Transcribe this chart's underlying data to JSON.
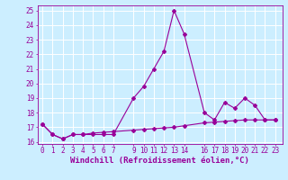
{
  "xlabel": "Windchill (Refroidissement éolien,°C)",
  "background_color": "#cceeff",
  "grid_color": "#ffffff",
  "line_color": "#990099",
  "x_line1": [
    0,
    1,
    2,
    3,
    4,
    5,
    6,
    7,
    9,
    10,
    11,
    12,
    13,
    14,
    16,
    17,
    18,
    19,
    20,
    21,
    22,
    23
  ],
  "y_line1": [
    17.2,
    16.5,
    16.2,
    16.5,
    16.5,
    16.5,
    16.5,
    16.5,
    19.0,
    19.8,
    21.0,
    22.2,
    25.0,
    23.4,
    18.0,
    17.5,
    18.7,
    18.3,
    19.0,
    18.5,
    17.5,
    17.5
  ],
  "x_line2": [
    0,
    1,
    2,
    3,
    4,
    5,
    6,
    7,
    9,
    10,
    11,
    12,
    13,
    14,
    16,
    17,
    18,
    19,
    20,
    21,
    22,
    23
  ],
  "y_line2": [
    17.2,
    16.5,
    16.2,
    16.5,
    16.5,
    16.6,
    16.65,
    16.7,
    16.8,
    16.85,
    16.9,
    16.95,
    17.0,
    17.1,
    17.3,
    17.35,
    17.4,
    17.45,
    17.5,
    17.5,
    17.5,
    17.5
  ],
  "yticks": [
    16,
    17,
    18,
    19,
    20,
    21,
    22,
    23,
    24,
    25
  ],
  "xticks": [
    0,
    1,
    2,
    3,
    4,
    5,
    6,
    7,
    9,
    10,
    11,
    12,
    13,
    14,
    16,
    17,
    18,
    19,
    20,
    21,
    22,
    23
  ],
  "tick_fontsize": 5.5,
  "label_fontsize": 6.5,
  "ylim_bottom": 15.85,
  "ylim_top": 25.35,
  "xlim_left": -0.5,
  "xlim_right": 23.7
}
